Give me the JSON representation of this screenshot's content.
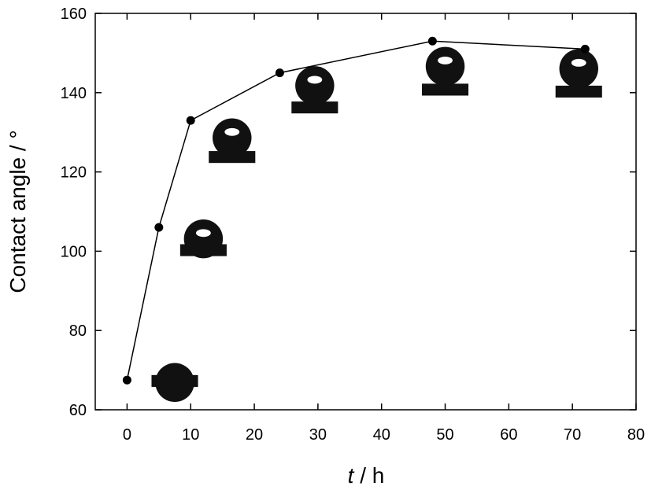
{
  "chart_data": {
    "type": "line",
    "title": "",
    "xlabel": {
      "italic": "t",
      "rest": " / h"
    },
    "ylabel": "Contact angle / °",
    "xlim": [
      -5,
      80
    ],
    "ylim": [
      60,
      160
    ],
    "xticks": [
      0,
      10,
      20,
      30,
      40,
      50,
      60,
      70,
      80
    ],
    "yticks": [
      60,
      80,
      100,
      120,
      140,
      160
    ],
    "grid": false,
    "series": [
      {
        "x": [
          0,
          5,
          10,
          24,
          48,
          72
        ],
        "y": [
          67.5,
          106,
          133,
          145,
          153,
          151
        ]
      }
    ],
    "droplet_insets": [
      {
        "x": 7.5,
        "y": 69.5,
        "contact_angle": 67.5
      },
      {
        "x": 12,
        "y": 102.5,
        "contact_angle": 106
      },
      {
        "x": 16.5,
        "y": 126,
        "contact_angle": 133
      },
      {
        "x": 29.5,
        "y": 138.5,
        "contact_angle": 145
      },
      {
        "x": 50,
        "y": 143,
        "contact_angle": 153
      },
      {
        "x": 71,
        "y": 142.5,
        "contact_angle": 151
      }
    ],
    "colors": {
      "line": "#000000",
      "marker": "#000000",
      "droplet": "#111111"
    }
  }
}
